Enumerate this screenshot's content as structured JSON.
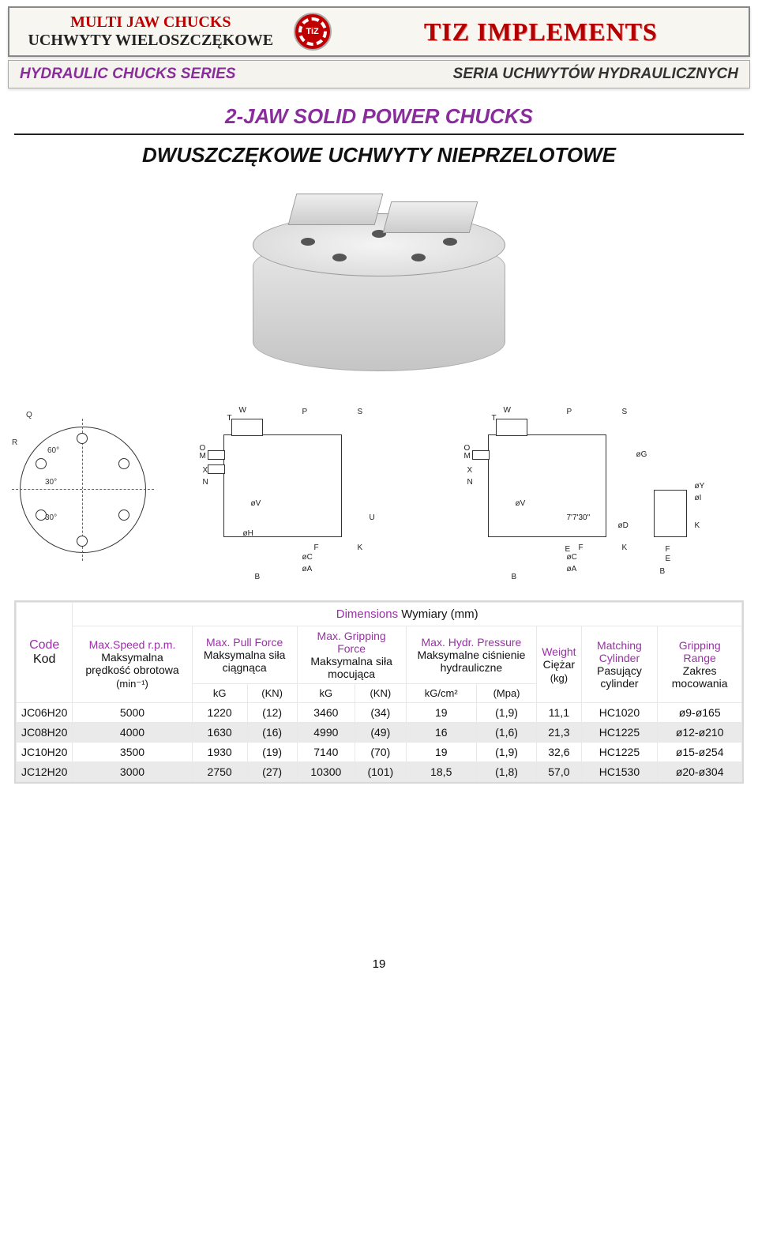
{
  "header": {
    "title_en": "MULTI JAW CHUCKS",
    "title_pl": "UCHWYTY WIELOSZCZĘKOWE",
    "logo_text": "TiZ",
    "brand": "TIZ IMPLEMENTS",
    "brand_color": "#b30000"
  },
  "subbar": {
    "series_en": "HYDRAULIC CHUCKS SERIES",
    "series_pl": "SERIA UCHWYTÓW HYDRAULICZNYCH"
  },
  "titles": {
    "main_en": "2-JAW SOLID POWER CHUCKS",
    "main_pl": "DWUSZCZĘKOWE UCHWYTY NIEPRZELOTOWE"
  },
  "diagram_labels": {
    "q": "Q",
    "r": "R",
    "w": "W",
    "t": "T",
    "p": "P",
    "s": "S",
    "o": "O",
    "m": "M",
    "x": "X",
    "n": "N",
    "ov": "øV",
    "oh": "øH",
    "oc": "øC",
    "oa": "øA",
    "og": "øG",
    "od": "øD",
    "oy": "øY",
    "ol": "øI",
    "b": "B",
    "f": "F",
    "k": "K",
    "u": "U",
    "e": "E",
    "angle60": "60°",
    "angle30a": "30°",
    "angle30b": "30°",
    "tap": "7'7'30\""
  },
  "table": {
    "dimensions_en": "Dimensions",
    "dimensions_pl": "Wymiary (mm)",
    "columns": {
      "code": {
        "en": "Code",
        "pl": "Kod"
      },
      "speed": {
        "en": "Max.Speed r.p.m.",
        "pl": "Maksymalna prędkość obrotowa",
        "unit": "(min⁻¹)"
      },
      "pull": {
        "en": "Max. Pull Force",
        "pl": "Maksymalna siła ciągnąca",
        "unit_kg": "kG",
        "unit_kn": "(KN)"
      },
      "grip": {
        "en": "Max. Gripping Force",
        "pl": "Maksymalna siła mocująca",
        "unit_kg": "kG",
        "unit_kn": "(KN)"
      },
      "hydr": {
        "en": "Max. Hydr. Pressure",
        "pl": "Maksymalne ciśnienie hydrauliczne",
        "unit_kgcm": "kG/cm²",
        "unit_mpa": "(Mpa)"
      },
      "weight": {
        "en": "Weight",
        "pl": "Ciężar",
        "unit": "(kg)"
      },
      "cyl": {
        "en": "Matching Cylinder",
        "pl": "Pasujący cylinder"
      },
      "range": {
        "en": "Gripping Range",
        "pl": "Zakres mocowania"
      }
    },
    "rows": [
      {
        "code": "JC06H20",
        "speed": "5000",
        "pull_kg": "1220",
        "pull_kn": "(12)",
        "grip_kg": "3460",
        "grip_kn": "(34)",
        "hydr_kgcm": "19",
        "hydr_mpa": "(1,9)",
        "weight": "11,1",
        "cyl": "HC1020",
        "range": "ø9-ø165"
      },
      {
        "code": "JC08H20",
        "speed": "4000",
        "pull_kg": "1630",
        "pull_kn": "(16)",
        "grip_kg": "4990",
        "grip_kn": "(49)",
        "hydr_kgcm": "16",
        "hydr_mpa": "(1,6)",
        "weight": "21,3",
        "cyl": "HC1225",
        "range": "ø12-ø210"
      },
      {
        "code": "JC10H20",
        "speed": "3500",
        "pull_kg": "1930",
        "pull_kn": "(19)",
        "grip_kg": "7140",
        "grip_kn": "(70)",
        "hydr_kgcm": "19",
        "hydr_mpa": "(1,9)",
        "weight": "32,6",
        "cyl": "HC1225",
        "range": "ø15-ø254"
      },
      {
        "code": "JC12H20",
        "speed": "3000",
        "pull_kg": "2750",
        "pull_kn": "(27)",
        "grip_kg": "10300",
        "grip_kn": "(101)",
        "hydr_kgcm": "18,5",
        "hydr_mpa": "(1,8)",
        "weight": "57,0",
        "cyl": "HC1530",
        "range": "ø20-ø304"
      }
    ]
  },
  "page_number": "19",
  "colors": {
    "purple": "#8a2d9c",
    "red": "#c00000",
    "row_alt": "#eaeaea"
  }
}
